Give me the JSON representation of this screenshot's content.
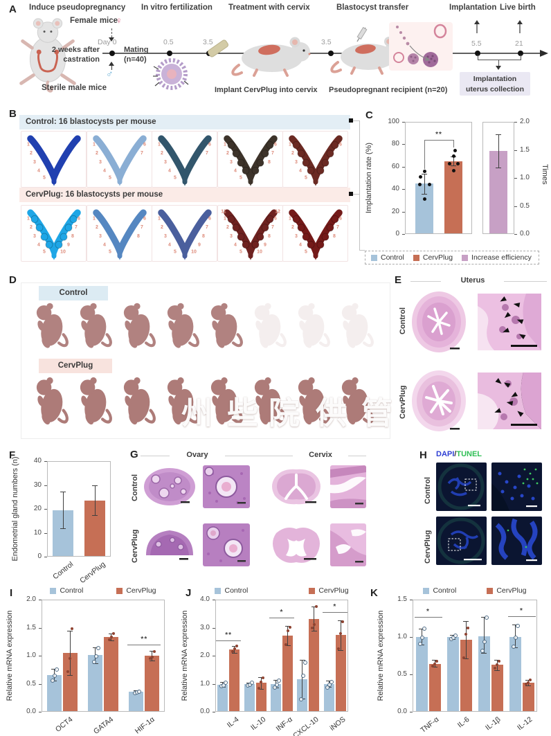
{
  "colors": {
    "control": "#a6c3da",
    "cervplug": "#c66f55",
    "efficiency": "#c7a0c5",
    "site_number": "#dd8a79",
    "header_blue_bg": "#e3eef5",
    "header_pink_bg": "#fbebe7",
    "strip_blue_bg": "#dcebf3",
    "strip_pink_bg": "#f8e3de",
    "collection_box_bg": "#eae8f3",
    "dapi": "#2e3fd4",
    "tunel": "#2fbf55"
  },
  "panelA": {
    "label": "A",
    "steps": {
      "induce": "Induce pseudopregnancy",
      "ivf": "In vitro fertilization",
      "treatment": "Treatment with cervix",
      "transfer": "Blastocyst transfer",
      "implantation": "Implantation",
      "live_birth": "Live birth"
    },
    "female_mice": "Female mice",
    "female_symbol": "♀",
    "male_symbol": "♂",
    "sterile_male": "Sterile male mice",
    "weeks_1": "2 weeks after",
    "weeks_2": "castration",
    "day0": "Day 0",
    "mating_1": "Mating",
    "mating_2": "(n=40)",
    "timepoints": {
      "t1": "0.5",
      "t2": "3.5",
      "t3": "3.5",
      "t4": "5.5",
      "t5": "21"
    },
    "implant_caption": "Implant CervPlug into cervix",
    "recipient_caption": "Pseudopregnant recipient (n=20)",
    "collection_1": "Implantation",
    "collection_2": "uterus collection"
  },
  "panelB": {
    "label": "B",
    "control_header": "Control: 16 blastocysts per mouse",
    "cervplug_header": "CervPlug: 16 blastocysts per mouse",
    "uteri_control": [
      {
        "color": "#2040b0",
        "sites": 5,
        "beaded": false
      },
      {
        "color": "#8aaed4",
        "sites": 7,
        "beaded": false
      },
      {
        "color": "#32566c",
        "sites": 7,
        "beaded": false
      },
      {
        "color": "#3d332a",
        "sites": 8,
        "beaded": true
      },
      {
        "color": "#6b2a23",
        "sites": 6,
        "beaded": true
      }
    ],
    "uteri_cervplug": [
      {
        "color": "#1ea6e6",
        "sites": 10,
        "beaded": true
      },
      {
        "color": "#5587c1",
        "sites": 8,
        "beaded": false
      },
      {
        "color": "#4a5f9d",
        "sites": 10,
        "beaded": false
      },
      {
        "color": "#6e2220",
        "sites": 12,
        "beaded": true
      },
      {
        "color": "#741a19",
        "sites": 8,
        "beaded": true
      }
    ]
  },
  "panelD": {
    "label": "D",
    "control_label": "Control",
    "cervplug_label": "CervPlug",
    "pups_per_row": 8,
    "control_faded_from": 5
  },
  "panelE": {
    "label": "E",
    "title": "Uterus",
    "row1": "Control",
    "row2": "CervPlug"
  },
  "panelG": {
    "label": "G",
    "organ1": "Ovary",
    "organ2": "Cervix",
    "row1": "Control",
    "row2": "CervPlug"
  },
  "panelH": {
    "label": "H",
    "stain1": "DAPI",
    "slash": "/",
    "stain2": "TUNEL",
    "row1": "Control",
    "row2": "CervPlug"
  },
  "watermark": {
    "chars": [
      "州",
      "些",
      "院",
      "供",
      "管"
    ]
  },
  "chart_data": [
    {
      "id": "C",
      "panel_label": "C",
      "type": "bar",
      "legend": [
        {
          "label": "Control",
          "color_key": "control"
        },
        {
          "label": "CervPlug",
          "color_key": "cervplug"
        },
        {
          "label": "Increase efficiency",
          "color_key": "efficiency"
        }
      ],
      "left_axis": {
        "ylabel": "Implantation rate (%)",
        "ylim": [
          0,
          100
        ],
        "yticks": [
          "0",
          "20",
          "40",
          "60",
          "80",
          "100"
        ],
        "bars": [
          {
            "name": "Control",
            "value": 45,
            "err": [
              36,
              54
            ],
            "dots": [
              31.5,
              44.5,
              44.5,
              51,
              56
            ],
            "dot_dx": [
              0,
              -7,
              7,
              -6,
              0
            ],
            "color_key": "control"
          },
          {
            "name": "CervPlug",
            "value": 65,
            "err": [
              61,
              69
            ],
            "dots": [
              56.5,
              63,
              63,
              70,
              75
            ],
            "dot_dx": [
              0,
              -6,
              6,
              0,
              2
            ],
            "color_key": "cervplug"
          }
        ],
        "sig": {
          "label": "**",
          "y": 84,
          "drop": [
            58,
            77
          ]
        }
      },
      "right_axis": {
        "ylabel": "Times",
        "ylim": [
          0,
          2
        ],
        "yticks": [
          "0.0",
          "0.5",
          "1.0",
          "1.5",
          "2.0"
        ],
        "bars": [
          {
            "name": "Increase efficiency",
            "value": 1.48,
            "err": [
              1.19,
              1.78
            ],
            "color_key": "efficiency"
          }
        ]
      }
    },
    {
      "id": "F",
      "panel_label": "F",
      "type": "bar",
      "ylabel": "Endometrial gland numbers (n)",
      "ylim": [
        0,
        40
      ],
      "yticks": [
        "0",
        "10",
        "20",
        "30",
        "40"
      ],
      "categories": [
        "Control",
        "CervPlug"
      ],
      "bars": [
        {
          "value": 19.5,
          "err": [
            11.8,
            27.3
          ],
          "color_key": "control"
        },
        {
          "value": 23.5,
          "err": [
            17.3,
            29.8
          ],
          "color_key": "cervplug"
        }
      ]
    },
    {
      "id": "I",
      "panel_label": "I",
      "type": "grouped-bar",
      "ylabel": "Relative mRNA expression",
      "ylim": [
        0,
        2
      ],
      "yticks": [
        "0.0",
        "0.5",
        "1.0",
        "1.5",
        "2.0"
      ],
      "legend": [
        {
          "label": "Control",
          "color_key": "control"
        },
        {
          "label": "CervPlug",
          "color_key": "cervplug"
        }
      ],
      "categories": [
        "OCT4",
        "GATA4",
        "HIF-1α"
      ],
      "series": [
        {
          "name": "Control",
          "color_key": "control",
          "values": [
            0.66,
            1.01,
            0.36
          ],
          "err": [
            [
              0.55,
              0.77
            ],
            [
              0.87,
              1.15
            ],
            [
              0.34,
              0.38
            ]
          ],
          "dots": [
            [
              0.57,
              0.66,
              0.76
            ],
            [
              0.9,
              1.0,
              1.15
            ],
            [
              0.35,
              0.36,
              0.37
            ]
          ]
        },
        {
          "name": "CervPlug",
          "color_key": "cervplug",
          "values": [
            1.05,
            1.33,
            1.0
          ],
          "err": [
            [
              0.65,
              1.45
            ],
            [
              1.27,
              1.4
            ],
            [
              0.91,
              1.09
            ]
          ],
          "dots": [
            [
              0.72,
              0.95,
              1.48
            ],
            [
              1.29,
              1.33,
              1.4
            ],
            [
              0.95,
              0.97,
              1.08
            ]
          ]
        }
      ],
      "sig": [
        {
          "category": "HIF-1α",
          "label": "**",
          "y": 1.2
        }
      ]
    },
    {
      "id": "J",
      "panel_label": "J",
      "type": "grouped-bar",
      "ylabel": "Relative mRNA expression",
      "ylim": [
        0,
        4
      ],
      "yticks": [
        "0.0",
        "1.0",
        "2.0",
        "3.0",
        "4.0"
      ],
      "legend": [
        {
          "label": "Control",
          "color_key": "control"
        },
        {
          "label": "CervPlug",
          "color_key": "cervplug"
        }
      ],
      "categories": [
        "IL-4",
        "IL-10",
        "INF-α",
        "CXCL-10",
        "iNOS"
      ],
      "series": [
        {
          "name": "Control",
          "color_key": "control",
          "values": [
            0.97,
            1.0,
            1.0,
            1.16,
            0.99
          ],
          "err": [
            [
              0.9,
              1.05
            ],
            [
              0.96,
              1.04
            ],
            [
              0.86,
              1.14
            ],
            [
              0.46,
              1.86
            ],
            [
              0.88,
              1.1
            ]
          ],
          "dots": [
            [
              0.93,
              0.97,
              1.05
            ],
            [
              0.97,
              1.0,
              1.05
            ],
            [
              0.9,
              1.0,
              1.13
            ],
            [
              0.48,
              1.3,
              1.78
            ],
            [
              0.9,
              1.0,
              1.08
            ]
          ]
        },
        {
          "name": "CervPlug",
          "color_key": "cervplug",
          "values": [
            2.22,
            1.03,
            2.72,
            3.3,
            2.73
          ],
          "err": [
            [
              2.1,
              2.35
            ],
            [
              0.82,
              1.24
            ],
            [
              2.38,
              3.06
            ],
            [
              2.9,
              3.76
            ],
            [
              2.2,
              3.26
            ]
          ],
          "dots": [
            [
              2.15,
              2.25,
              2.35
            ],
            [
              0.85,
              1.05,
              1.2
            ],
            [
              2.4,
              2.9,
              3.02
            ],
            [
              3.0,
              3.1,
              3.75
            ],
            [
              2.25,
              2.8,
              3.2
            ]
          ]
        }
      ],
      "sig": [
        {
          "category": "IL-4",
          "label": "**",
          "y": 2.55
        },
        {
          "category": "INF-α",
          "label": "*",
          "y": 3.35
        },
        {
          "category": "iNOS",
          "label": "*",
          "y": 3.55
        }
      ]
    },
    {
      "id": "K",
      "panel_label": "K",
      "type": "grouped-bar",
      "ylabel": "Relative mRNA expression",
      "ylim": [
        0,
        1.5
      ],
      "yticks": [
        "0.0",
        "0.5",
        "1.0",
        "1.5"
      ],
      "legend": [
        {
          "label": "Control",
          "color_key": "control"
        },
        {
          "label": "CervPlug",
          "color_key": "cervplug"
        }
      ],
      "categories": [
        "TNF-α",
        "IL-6",
        "IL-1β",
        "IL-12"
      ],
      "series": [
        {
          "name": "Control",
          "color_key": "control",
          "values": [
            1.0,
            1.0,
            1.01,
            1.0
          ],
          "err": [
            [
              0.9,
              1.11
            ],
            [
              0.97,
              1.03
            ],
            [
              0.79,
              1.27
            ],
            [
              0.86,
              1.17
            ]
          ],
          "dots": [
            [
              0.92,
              1.0,
              1.12
            ],
            [
              0.98,
              1.0,
              1.03
            ],
            [
              0.82,
              0.94,
              1.27
            ],
            [
              0.88,
              1.0,
              1.16
            ]
          ]
        },
        {
          "name": "CervPlug",
          "color_key": "cervplug",
          "values": [
            0.64,
            0.96,
            0.63,
            0.39
          ],
          "err": [
            [
              0.6,
              0.69
            ],
            [
              0.71,
              1.21
            ],
            [
              0.56,
              0.69
            ],
            [
              0.35,
              0.43
            ]
          ],
          "dots": [
            [
              0.61,
              0.64,
              0.68
            ],
            [
              0.72,
              1.04,
              1.12
            ],
            [
              0.58,
              0.63,
              0.68
            ],
            [
              0.37,
              0.39,
              0.43
            ]
          ]
        }
      ],
      "sig": [
        {
          "category": "TNF-α",
          "label": "*",
          "y": 1.27
        },
        {
          "category": "IL-12",
          "label": "*",
          "y": 1.28
        }
      ]
    }
  ]
}
